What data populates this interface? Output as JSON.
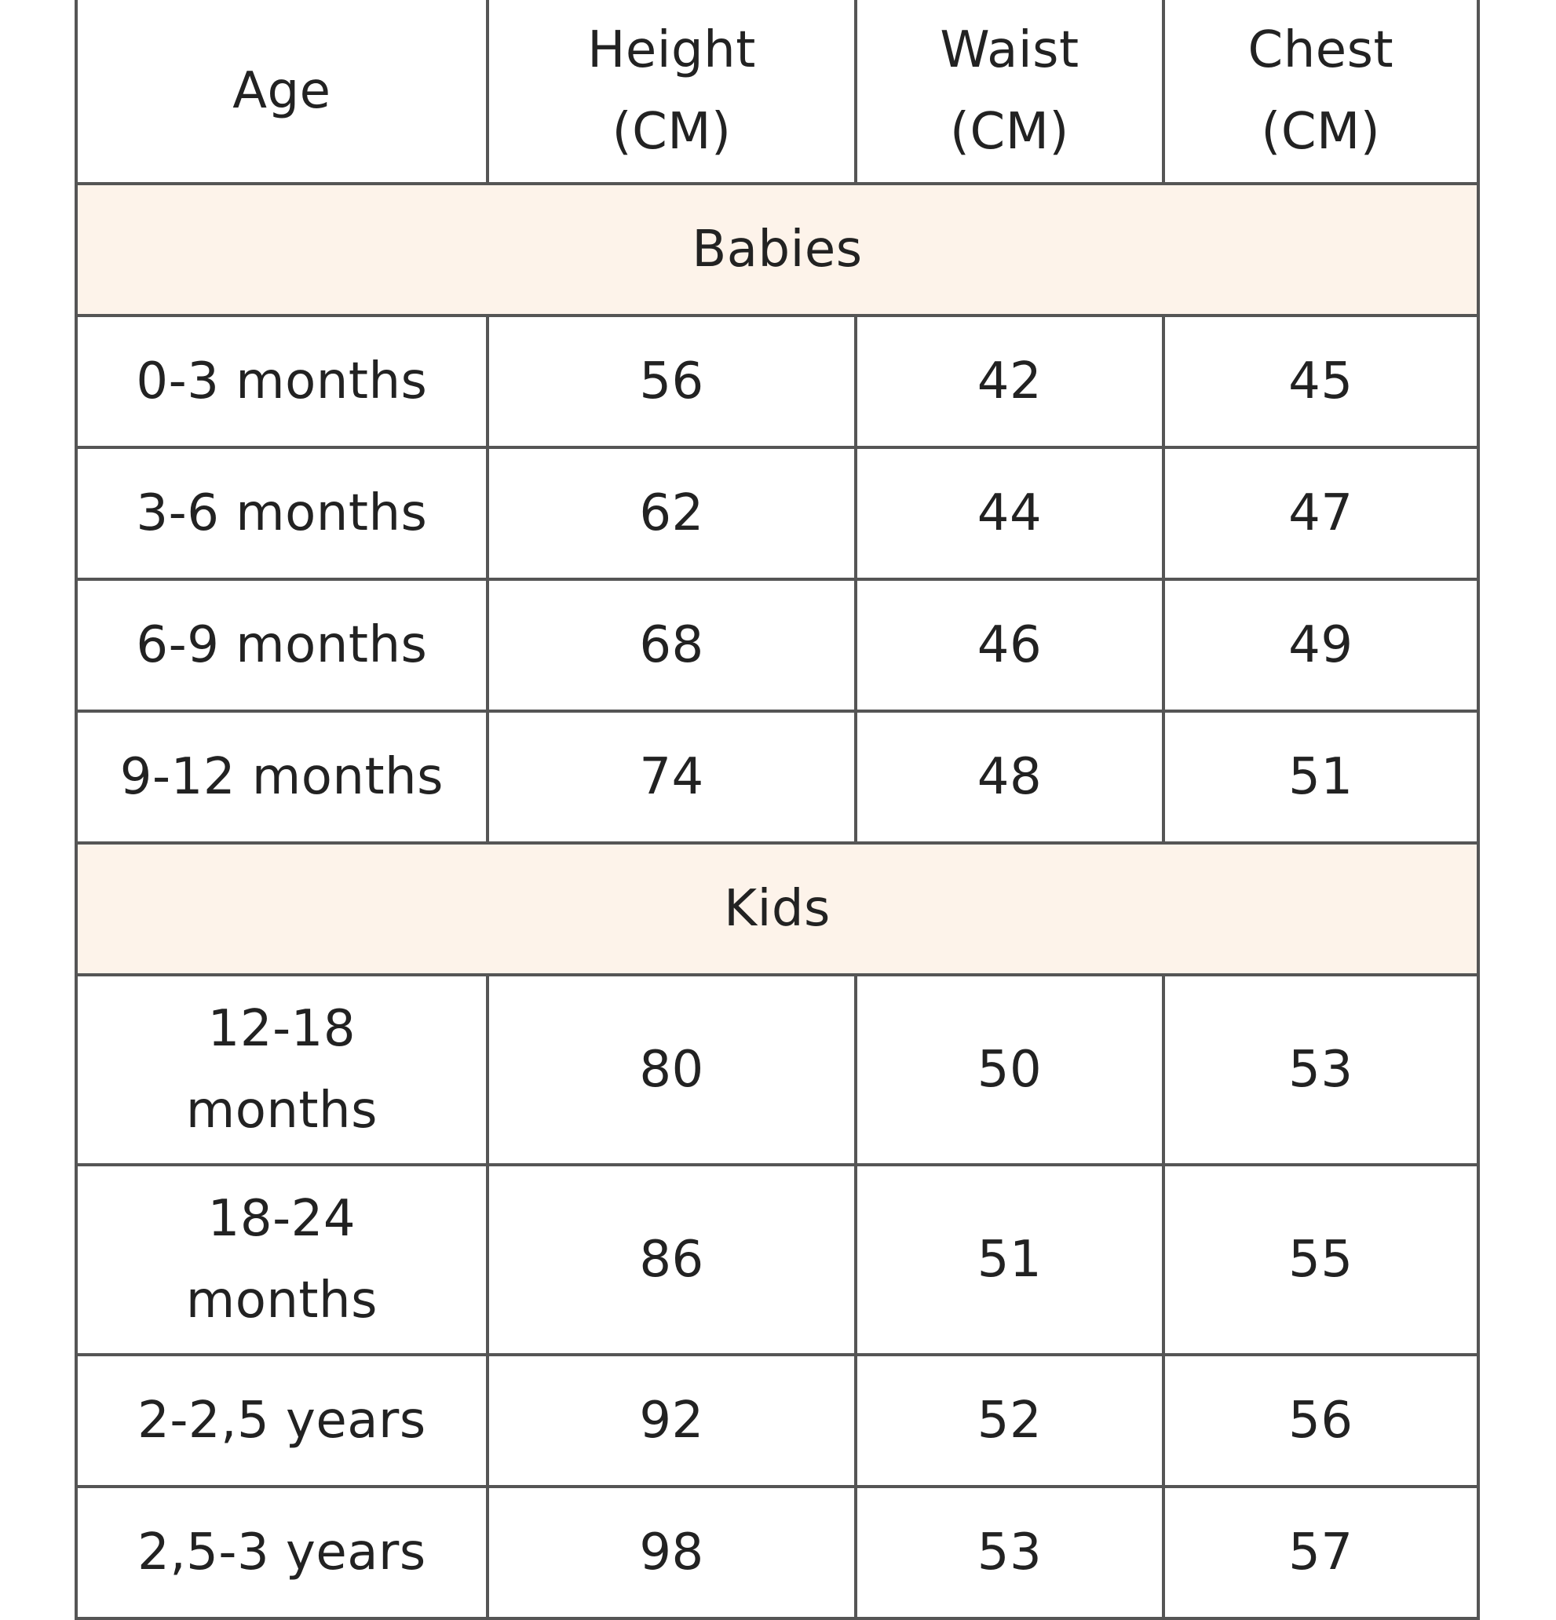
{
  "table": {
    "headers": {
      "age": "Age",
      "height": [
        "Height",
        "(CM)"
      ],
      "waist": [
        "Waist",
        "(CM)"
      ],
      "chest": [
        "Chest",
        "(CM)"
      ]
    },
    "sections": [
      {
        "title": "Babies",
        "rows": [
          {
            "age": "0-3 months",
            "height": "56",
            "waist": "42",
            "chest": "45"
          },
          {
            "age": "3-6 months",
            "height": "62",
            "waist": "44",
            "chest": "47"
          },
          {
            "age": "6-9 months",
            "height": "68",
            "waist": "46",
            "chest": "49"
          },
          {
            "age": "9-12 months",
            "height": "74",
            "waist": "48",
            "chest": "51"
          }
        ]
      },
      {
        "title": "Kids",
        "rows": [
          {
            "age": [
              "12-18",
              "months"
            ],
            "height": "80",
            "waist": "50",
            "chest": "53"
          },
          {
            "age": [
              "18-24",
              "months"
            ],
            "height": "86",
            "waist": "51",
            "chest": "55"
          },
          {
            "age": "2-2,5 years",
            "height": "92",
            "waist": "52",
            "chest": "56"
          },
          {
            "age": "2,5-3 years",
            "height": "98",
            "waist": "53",
            "chest": "57"
          }
        ]
      }
    ]
  },
  "colors": {
    "section_bg": "#fdf3ea",
    "border": "#555555",
    "text": "#222222"
  }
}
